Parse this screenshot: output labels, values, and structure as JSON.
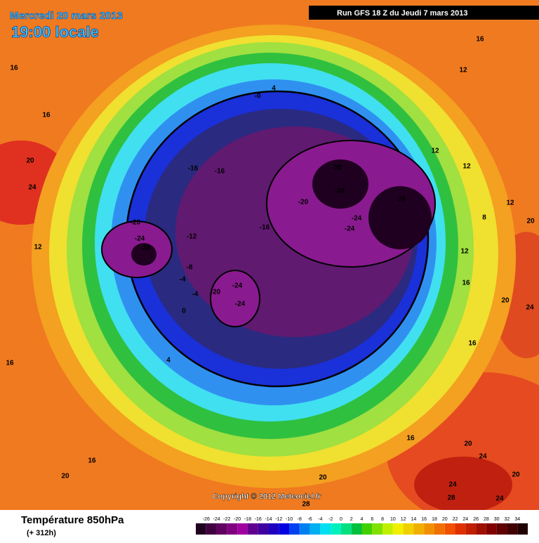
{
  "header": {
    "date": "Mercredi 20 mars 2013",
    "time": "19:00 locale",
    "run": "Run GFS 18 Z du Jeudi 7 mars 2013"
  },
  "footer": {
    "title": "Température 850hPa",
    "lead": "(+ 312h)",
    "copyright": "Copyright © 2012 Meteociel.fr"
  },
  "colorbar": {
    "labels": [
      "-26",
      "-24",
      "-22",
      "-20",
      "-18",
      "-16",
      "-14",
      "-12",
      "-10",
      "-8",
      "-6",
      "-4",
      "-2",
      "0",
      "2",
      "4",
      "6",
      "8",
      "10",
      "12",
      "14",
      "16",
      "18",
      "20",
      "22",
      "24",
      "26",
      "28",
      "30",
      "32",
      "34"
    ],
    "colors": [
      "#200020",
      "#400040",
      "#600060",
      "#800080",
      "#a000a0",
      "#600090",
      "#4000a0",
      "#2000c0",
      "#0000e0",
      "#0040f0",
      "#0080f0",
      "#00b0f0",
      "#00e0f0",
      "#00f0c0",
      "#00e080",
      "#00c040",
      "#40d000",
      "#80e000",
      "#c0f000",
      "#f0f000",
      "#f0d000",
      "#f0b000",
      "#f09000",
      "#f07000",
      "#f05000",
      "#e03000",
      "#c02000",
      "#a01000",
      "#800000",
      "#600000",
      "#400000",
      "#200000"
    ]
  },
  "contour_labels": [
    "8",
    "16",
    "16",
    "-0",
    "4",
    "12",
    "16",
    "12",
    "12",
    "20",
    "24",
    "-16",
    "-16",
    "-28",
    "-28",
    "-28",
    "-20",
    "-24",
    "-24",
    "-16",
    "-20",
    "-24",
    "-28",
    "-12",
    "12",
    "-8",
    "-4",
    "-20",
    "-24",
    "-24",
    "-4",
    "0",
    "4",
    "16",
    "16",
    "16",
    "20",
    "24",
    "20",
    "20",
    "24",
    "28",
    "24",
    "28",
    "20",
    "12",
    "20",
    "12",
    "16",
    "20",
    "24",
    "16",
    "8"
  ]
}
